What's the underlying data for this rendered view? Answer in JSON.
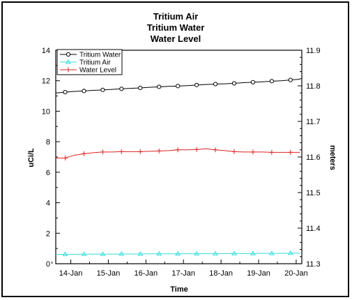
{
  "chart_data": {
    "type": "line",
    "title": [
      "Tritium Air",
      "Tritium Water",
      "Water Level"
    ],
    "xlabel": "Time",
    "ylabel": "uCi/L",
    "y2label": "meters",
    "x_tick_labels": [
      "14-Jan",
      "15-Jan",
      "16-Jan",
      "17-Jan",
      "18-Jan",
      "19-Jan",
      "20-Jan"
    ],
    "xlim": [
      13.6,
      20.15
    ],
    "ylim": [
      0,
      14
    ],
    "y_ticks": [
      0,
      2,
      4,
      6,
      8,
      10,
      12,
      14
    ],
    "y2lim": [
      11.3,
      11.9
    ],
    "y2_ticks": [
      11.3,
      11.4,
      11.5,
      11.6,
      11.7,
      11.8,
      11.9
    ],
    "y2_tick_labels": [
      "11.3",
      "11.4",
      "11.5",
      "11.6",
      "11.7",
      "11.8",
      "11.9"
    ],
    "legend_position": "top-left",
    "series": [
      {
        "name": "Tritium Water",
        "axis": "left",
        "color": "#000000",
        "marker": "circle",
        "x": [
          13.6,
          13.85,
          14.1,
          14.35,
          14.6,
          14.85,
          15.1,
          15.35,
          15.6,
          15.85,
          16.1,
          16.35,
          16.6,
          16.85,
          17.1,
          17.35,
          17.6,
          17.85,
          18.1,
          18.35,
          18.6,
          18.85,
          19.1,
          19.35,
          19.6,
          19.85,
          20.1
        ],
        "values": [
          11.2,
          11.25,
          11.3,
          11.33,
          11.37,
          11.4,
          11.43,
          11.47,
          11.5,
          11.53,
          11.57,
          11.6,
          11.63,
          11.65,
          11.68,
          11.72,
          11.75,
          11.78,
          11.8,
          11.83,
          11.87,
          11.9,
          11.93,
          11.97,
          12.0,
          12.05,
          12.1
        ]
      },
      {
        "name": "Tritium Air",
        "axis": "left",
        "color": "#33dddd",
        "marker": "triangle",
        "x": [
          13.6,
          13.85,
          14.1,
          14.35,
          14.6,
          14.85,
          15.1,
          15.35,
          15.6,
          15.85,
          16.1,
          16.35,
          16.6,
          16.85,
          17.1,
          17.35,
          17.6,
          17.85,
          18.1,
          18.35,
          18.6,
          18.85,
          19.1,
          19.35,
          19.6,
          19.85,
          20.1
        ],
        "values": [
          0.62,
          0.62,
          0.62,
          0.63,
          0.63,
          0.63,
          0.63,
          0.64,
          0.64,
          0.64,
          0.65,
          0.65,
          0.65,
          0.65,
          0.66,
          0.66,
          0.66,
          0.66,
          0.67,
          0.67,
          0.67,
          0.67,
          0.68,
          0.68,
          0.68,
          0.69,
          0.7
        ]
      },
      {
        "name": "Water Level",
        "axis": "right",
        "color": "#dd2222",
        "marker": "plus",
        "x": [
          13.6,
          13.85,
          14.1,
          14.35,
          14.6,
          14.85,
          15.1,
          15.35,
          15.6,
          15.85,
          16.1,
          16.35,
          16.6,
          16.85,
          17.1,
          17.35,
          17.6,
          17.85,
          18.1,
          18.35,
          18.6,
          18.85,
          19.1,
          19.35,
          19.6,
          19.85,
          20.1
        ],
        "values": [
          11.597,
          11.597,
          11.605,
          11.609,
          11.612,
          11.614,
          11.614,
          11.615,
          11.615,
          11.615,
          11.616,
          11.617,
          11.618,
          11.62,
          11.62,
          11.621,
          11.623,
          11.62,
          11.618,
          11.615,
          11.614,
          11.614,
          11.614,
          11.613,
          11.613,
          11.613,
          11.613
        ]
      }
    ]
  }
}
